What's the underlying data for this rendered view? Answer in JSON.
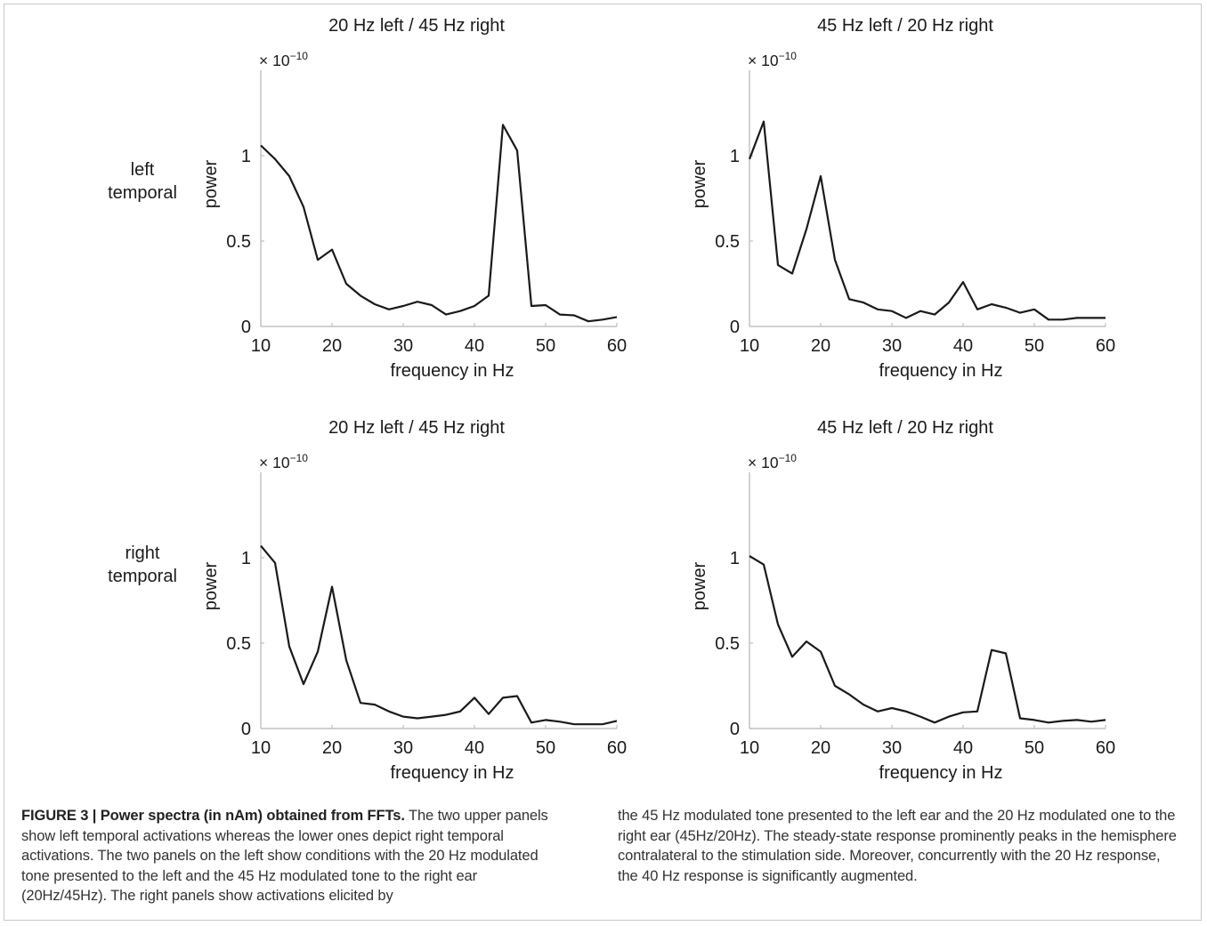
{
  "row_labels": [
    [
      "left",
      "temporal"
    ],
    [
      "right",
      "temporal"
    ]
  ],
  "chart_data": [
    {
      "type": "line",
      "title": "20 Hz left / 45 Hz right",
      "xlabel": "frequency in Hz",
      "ylabel": "power",
      "y_exponent_label": "× 10",
      "y_exponent": "−10",
      "xlim": [
        10,
        60
      ],
      "ylim": [
        0,
        1.5
      ],
      "xticks": [
        "10",
        "20",
        "30",
        "40",
        "50",
        "60"
      ],
      "yticks": [
        "0",
        "0.5",
        "1"
      ],
      "grid": false,
      "line_color": "#1a1a1a",
      "x": [
        10,
        12,
        14,
        16,
        18,
        20,
        22,
        24,
        26,
        28,
        30,
        32,
        34,
        36,
        38,
        40,
        42,
        44,
        46,
        48,
        50,
        52,
        54,
        56,
        58,
        60
      ],
      "y": [
        1.06,
        0.98,
        0.88,
        0.7,
        0.39,
        0.45,
        0.25,
        0.18,
        0.13,
        0.1,
        0.12,
        0.145,
        0.125,
        0.07,
        0.09,
        0.12,
        0.18,
        1.18,
        1.03,
        0.12,
        0.125,
        0.07,
        0.065,
        0.03,
        0.04,
        0.055
      ]
    },
    {
      "type": "line",
      "title": "45 Hz left / 20 Hz right",
      "xlabel": "frequency in Hz",
      "ylabel": "power",
      "y_exponent_label": "× 10",
      "y_exponent": "−10",
      "xlim": [
        10,
        60
      ],
      "ylim": [
        0,
        1.5
      ],
      "xticks": [
        "10",
        "20",
        "30",
        "40",
        "50",
        "60"
      ],
      "yticks": [
        "0",
        "0.5",
        "1"
      ],
      "grid": false,
      "line_color": "#1a1a1a",
      "x": [
        10,
        12,
        14,
        16,
        18,
        20,
        22,
        24,
        26,
        28,
        30,
        32,
        34,
        36,
        38,
        40,
        42,
        44,
        46,
        48,
        50,
        52,
        54,
        56,
        58,
        60
      ],
      "y": [
        0.98,
        1.2,
        0.36,
        0.31,
        0.57,
        0.88,
        0.39,
        0.16,
        0.14,
        0.1,
        0.09,
        0.05,
        0.09,
        0.07,
        0.14,
        0.26,
        0.1,
        0.13,
        0.11,
        0.08,
        0.1,
        0.04,
        0.04,
        0.05,
        0.05,
        0.05
      ]
    },
    {
      "type": "line",
      "title": "20 Hz left / 45 Hz right",
      "xlabel": "frequency in Hz",
      "ylabel": "power",
      "y_exponent_label": "× 10",
      "y_exponent": "−10",
      "xlim": [
        10,
        60
      ],
      "ylim": [
        0,
        1.5
      ],
      "xticks": [
        "10",
        "20",
        "30",
        "40",
        "50",
        "60"
      ],
      "yticks": [
        "0",
        "0.5",
        "1"
      ],
      "grid": false,
      "line_color": "#1a1a1a",
      "x": [
        10,
        12,
        14,
        16,
        18,
        20,
        22,
        24,
        26,
        28,
        30,
        32,
        34,
        36,
        38,
        40,
        42,
        44,
        46,
        48,
        50,
        52,
        54,
        56,
        58,
        60
      ],
      "y": [
        1.07,
        0.97,
        0.48,
        0.26,
        0.45,
        0.83,
        0.4,
        0.15,
        0.14,
        0.1,
        0.07,
        0.06,
        0.07,
        0.08,
        0.1,
        0.18,
        0.085,
        0.18,
        0.19,
        0.035,
        0.05,
        0.04,
        0.025,
        0.025,
        0.025,
        0.045
      ]
    },
    {
      "type": "line",
      "title": "45 Hz left / 20 Hz right",
      "xlabel": "frequency in Hz",
      "ylabel": "power",
      "y_exponent_label": "× 10",
      "y_exponent": "−10",
      "xlim": [
        10,
        60
      ],
      "ylim": [
        0,
        1.5
      ],
      "xticks": [
        "10",
        "20",
        "30",
        "40",
        "50",
        "60"
      ],
      "yticks": [
        "0",
        "0.5",
        "1"
      ],
      "grid": false,
      "line_color": "#1a1a1a",
      "x": [
        10,
        12,
        14,
        16,
        18,
        20,
        22,
        24,
        26,
        28,
        30,
        32,
        34,
        36,
        38,
        40,
        42,
        44,
        46,
        48,
        50,
        52,
        54,
        56,
        58,
        60
      ],
      "y": [
        1.01,
        0.96,
        0.61,
        0.42,
        0.51,
        0.45,
        0.25,
        0.2,
        0.14,
        0.1,
        0.12,
        0.1,
        0.07,
        0.035,
        0.07,
        0.095,
        0.1,
        0.46,
        0.44,
        0.06,
        0.05,
        0.035,
        0.045,
        0.05,
        0.04,
        0.05
      ]
    }
  ],
  "caption": {
    "label": "FIGURE 3 | Power spectra (in nAm) obtained from FFTs.",
    "text_left": " The two upper panels show left temporal activations whereas the lower ones depict right temporal activations. The two panels on the left show conditions with the 20 Hz modulated tone presented to the left and the 45 Hz modulated tone to the right ear (20Hz/45Hz). The right panels show activations elicited by",
    "text_right": "the 45 Hz modulated tone presented to the left ear and the 20 Hz modulated one to the right ear (45Hz/20Hz). The steady-state response prominently peaks in the hemisphere contralateral to the stimulation side. Moreover, concurrently with the 20 Hz response, the 40 Hz response is significantly augmented."
  }
}
